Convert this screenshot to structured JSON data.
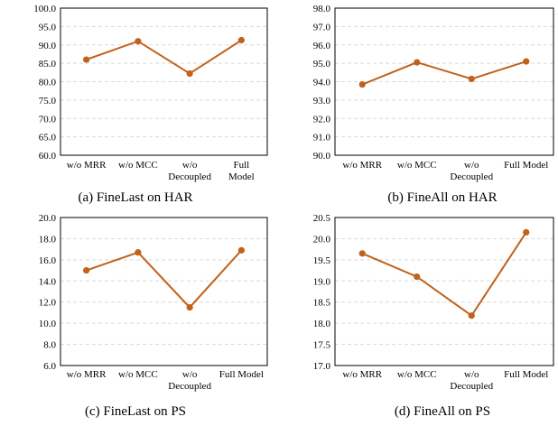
{
  "figure": {
    "colors": {
      "series": "#C0621C",
      "grid": "#D9D9D9",
      "axis": "#000000"
    }
  },
  "chart_data": [
    {
      "type": "line",
      "caption": "(a)  FineLast on HAR",
      "categories": [
        "w/o MRR",
        "w/o MCC",
        "w/o Decoupled",
        "Full Model"
      ],
      "category_lines": [
        [
          "w/o MRR"
        ],
        [
          "w/o MCC"
        ],
        [
          "w/o",
          "Decoupled"
        ],
        [
          "Full",
          "Model"
        ]
      ],
      "y_ticks": [
        "60.0",
        "65.0",
        "70.0",
        "75.0",
        "80.0",
        "85.0",
        "90.0",
        "95.0",
        "100.0"
      ],
      "ylim": [
        60,
        100
      ],
      "grid": true,
      "legend": "none",
      "series": [
        {
          "values": [
            86.0,
            91.0,
            82.2,
            91.3
          ]
        }
      ]
    },
    {
      "type": "line",
      "caption": "(b)  FineAll on HAR",
      "categories": [
        "w/o MRR",
        "w/o MCC",
        "w/o Decoupled",
        "Full Model"
      ],
      "category_lines": [
        [
          "w/o MRR"
        ],
        [
          "w/o MCC"
        ],
        [
          "w/o",
          "Decoupled"
        ],
        [
          "Full Model"
        ]
      ],
      "y_ticks": [
        "90.0",
        "91.0",
        "92.0",
        "93.0",
        "94.0",
        "95.0",
        "96.0",
        "97.0",
        "98.0"
      ],
      "ylim": [
        90,
        98
      ],
      "grid": true,
      "legend": "none",
      "series": [
        {
          "values": [
            93.85,
            95.05,
            94.15,
            95.1
          ]
        }
      ]
    },
    {
      "type": "line",
      "caption": "(c)  FineLast on PS",
      "categories": [
        "w/o MRR",
        "w/o MCC",
        "w/o Decoupled",
        "Full Model"
      ],
      "category_lines": [
        [
          "w/o MRR"
        ],
        [
          "w/o MCC"
        ],
        [
          "w/o",
          "Decoupled"
        ],
        [
          "Full Model"
        ]
      ],
      "y_ticks": [
        "6.0",
        "8.0",
        "10.0",
        "12.0",
        "14.0",
        "16.0",
        "18.0",
        "20.0"
      ],
      "ylim": [
        6,
        20
      ],
      "grid": true,
      "legend": "none",
      "series": [
        {
          "values": [
            15.0,
            16.7,
            11.5,
            16.9
          ]
        }
      ]
    },
    {
      "type": "line",
      "caption": "(d)  FineAll on PS",
      "categories": [
        "w/o MRR",
        "w/o MCC",
        "w/o Decoupled",
        "Full Model"
      ],
      "category_lines": [
        [
          "w/o MRR"
        ],
        [
          "w/o MCC"
        ],
        [
          "w/o",
          "Decoupled"
        ],
        [
          "Full Model"
        ]
      ],
      "y_ticks": [
        "17.0",
        "17.5",
        "18.0",
        "18.5",
        "19.0",
        "19.5",
        "20.0",
        "20.5"
      ],
      "ylim": [
        17,
        20.5
      ],
      "grid": true,
      "legend": "none",
      "series": [
        {
          "values": [
            19.65,
            19.1,
            18.18,
            20.15
          ]
        }
      ]
    }
  ]
}
